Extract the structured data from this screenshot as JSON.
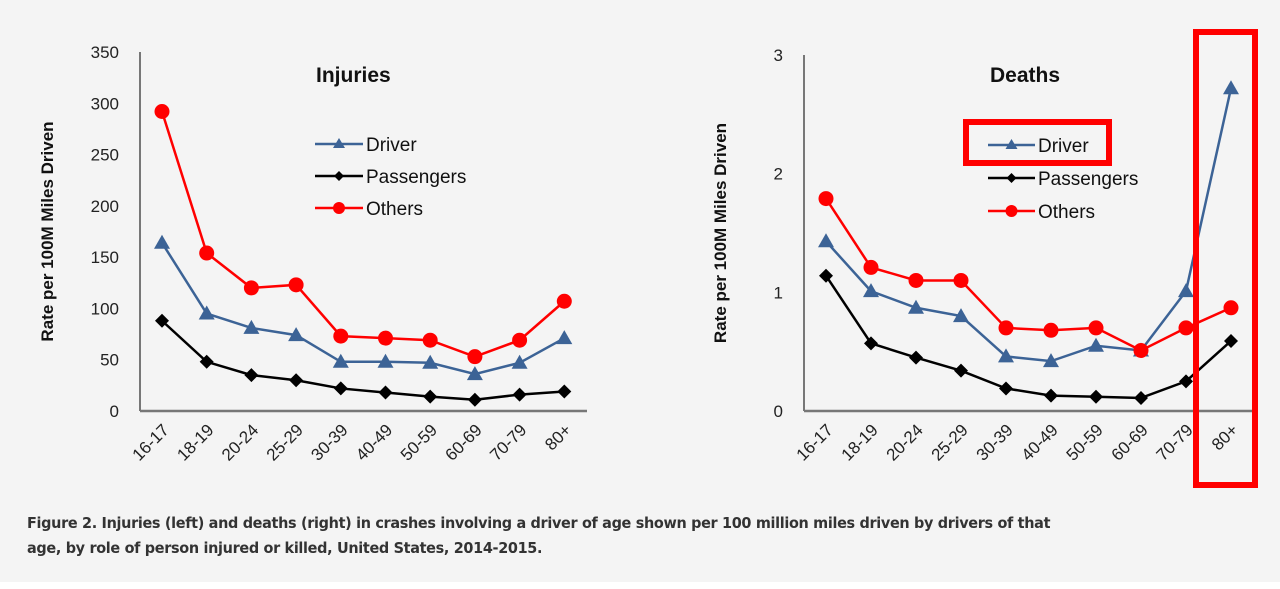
{
  "chart_data": [
    {
      "type": "line",
      "title": "Injuries",
      "xlabel": "",
      "ylabel": "Rate per 100M Miles Driven",
      "ylim": [
        0,
        350
      ],
      "yticks": [
        0,
        50,
        100,
        150,
        200,
        250,
        300,
        350
      ],
      "categories": [
        "16-17",
        "18-19",
        "20-24",
        "25-29",
        "30-39",
        "40-49",
        "50-59",
        "60-69",
        "70-79",
        "80+"
      ],
      "grid": false,
      "legend": "top-center",
      "series": [
        {
          "name": "Driver",
          "color": "#3c6396",
          "marker": "triangle",
          "values": [
            164,
            95,
            81,
            74,
            48,
            48,
            47,
            36,
            47,
            71
          ]
        },
        {
          "name": "Passengers",
          "color": "#000000",
          "marker": "diamond",
          "values": [
            88,
            48,
            35,
            30,
            22,
            18,
            14,
            11,
            16,
            19
          ]
        },
        {
          "name": "Others",
          "color": "#ff0000",
          "marker": "circle",
          "values": [
            292,
            154,
            120,
            123,
            73,
            71,
            69,
            53,
            69,
            107
          ]
        }
      ]
    },
    {
      "type": "line",
      "title": "Deaths",
      "xlabel": "",
      "ylabel": "Rate per 100M Miles Driven",
      "ylim": [
        0,
        3
      ],
      "yticks": [
        0,
        1,
        2,
        3
      ],
      "categories": [
        "16-17",
        "18-19",
        "20-24",
        "25-29",
        "30-39",
        "40-49",
        "50-59",
        "60-69",
        "70-79",
        "80+"
      ],
      "grid": false,
      "legend": "top-center",
      "series": [
        {
          "name": "Driver",
          "color": "#3c6396",
          "marker": "triangle",
          "values": [
            1.43,
            1.01,
            0.87,
            0.8,
            0.46,
            0.42,
            0.55,
            0.51,
            1.01,
            2.72
          ]
        },
        {
          "name": "Passengers",
          "color": "#000000",
          "marker": "diamond",
          "values": [
            1.14,
            0.57,
            0.45,
            0.34,
            0.19,
            0.13,
            0.12,
            0.11,
            0.25,
            0.59
          ]
        },
        {
          "name": "Others",
          "color": "#ff0000",
          "marker": "circle",
          "values": [
            1.79,
            1.21,
            1.1,
            1.1,
            0.7,
            0.68,
            0.7,
            0.51,
            0.7,
            0.87
          ]
        }
      ],
      "annotations": [
        {
          "type": "highlight-box",
          "target": "legend-entry",
          "label": "Driver",
          "color": "#ff0000"
        },
        {
          "type": "highlight-box",
          "target": "category",
          "label": "80+",
          "color": "#ff0000"
        }
      ]
    }
  ],
  "caption": {
    "line1": "Figure 2. Injuries (left) and deaths (right) in crashes involving a driver of age shown per 100 million miles driven by drivers of that",
    "line2": "age, by role of person injured or killed, United States, 2014-2015."
  }
}
